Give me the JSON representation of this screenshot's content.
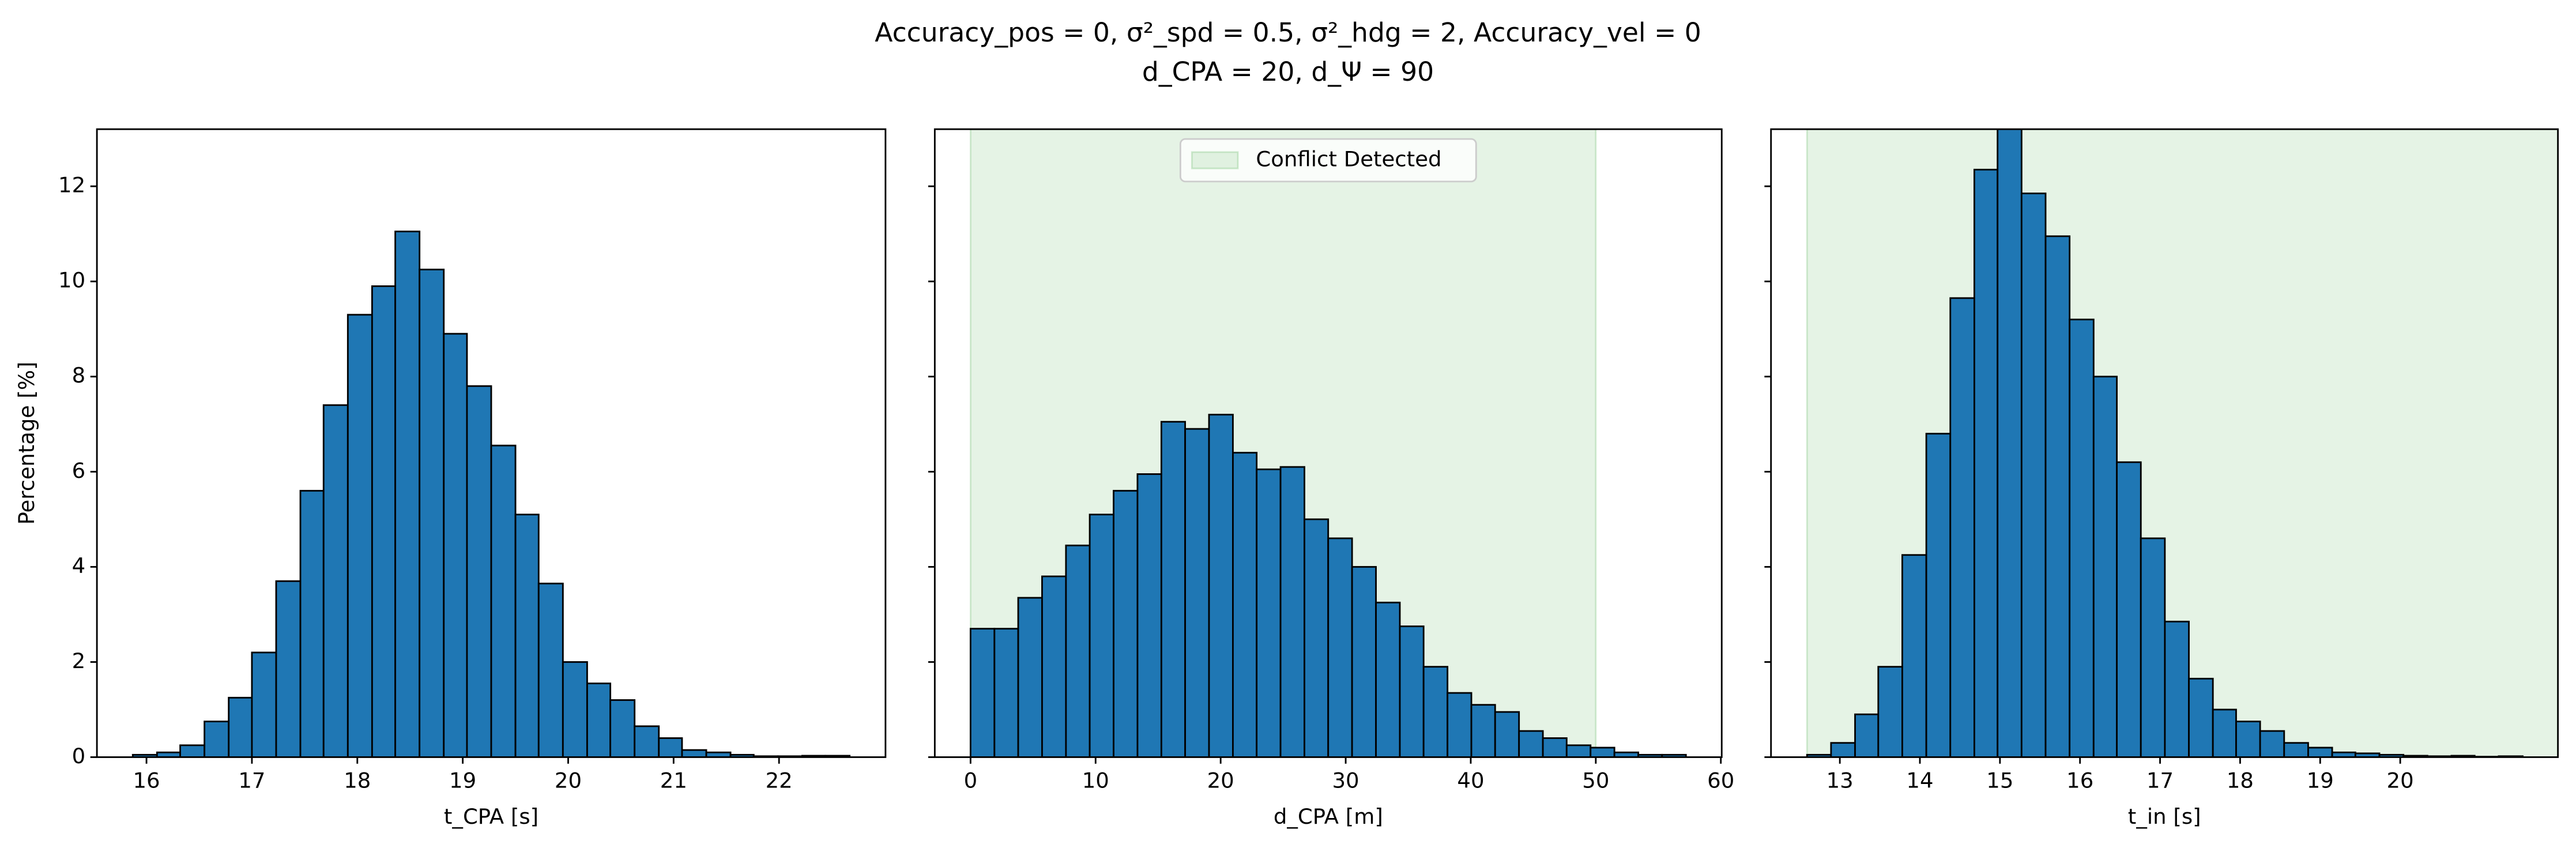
{
  "title_lines": [
    "Accuracy_pos = 0, σ²_spd = 0.5, σ²_hdg = 2, Accuracy_vel = 0",
    "d_CPA = 20, d_Ψ = 90"
  ],
  "chart_data": [
    {
      "type": "histogram",
      "xlabel": "t_CPA [s]",
      "ylabel": "Percentage [%]",
      "color": "#1f77b4",
      "bins": [
        15.87,
        16.1,
        16.32,
        16.55,
        16.78,
        17.0,
        17.23,
        17.46,
        17.68,
        17.91,
        18.14,
        18.36,
        18.59,
        18.82,
        19.04,
        19.27,
        19.5,
        19.72,
        19.95,
        20.18,
        20.4,
        20.63,
        20.86,
        21.08,
        21.31,
        21.54,
        21.76,
        21.99,
        22.22,
        22.44,
        22.67
      ],
      "values": [
        0.05,
        0.1,
        0.25,
        0.75,
        1.25,
        2.2,
        3.7,
        5.6,
        7.4,
        9.3,
        9.9,
        11.05,
        10.25,
        8.9,
        7.8,
        6.55,
        5.1,
        3.65,
        2.0,
        1.55,
        1.2,
        0.65,
        0.4,
        0.15,
        0.1,
        0.05,
        0.02,
        0.02,
        0.03,
        0.03
      ],
      "xlim": [
        15.53,
        23.01
      ],
      "xticks": [
        16,
        17,
        18,
        19,
        20,
        21,
        22
      ],
      "ylim": [
        0,
        13.2
      ],
      "yticks": [
        0,
        2,
        4,
        6,
        8,
        10,
        12
      ]
    },
    {
      "type": "histogram",
      "xlabel": "d_CPA [m]",
      "color": "#1f77b4",
      "bins": [
        0,
        1.91,
        3.81,
        5.72,
        7.63,
        9.53,
        11.44,
        13.35,
        15.26,
        17.16,
        19.07,
        20.98,
        22.88,
        24.79,
        26.7,
        28.6,
        30.51,
        32.42,
        34.33,
        36.23,
        38.14,
        40.05,
        41.95,
        43.86,
        45.77,
        47.67,
        49.58,
        51.49,
        53.4,
        55.3,
        57.21
      ],
      "values": [
        2.7,
        2.7,
        3.35,
        3.8,
        4.45,
        5.1,
        5.6,
        5.95,
        7.05,
        6.9,
        7.2,
        6.4,
        6.05,
        6.1,
        5.0,
        4.6,
        4.0,
        3.25,
        2.75,
        1.9,
        1.35,
        1.1,
        0.95,
        0.55,
        0.4,
        0.25,
        0.2,
        0.1,
        0.05,
        0.05
      ],
      "xlim": [
        -2.86,
        60.07
      ],
      "xticks": [
        0,
        10,
        20,
        30,
        40,
        50,
        60
      ],
      "ylim": [
        0,
        13.2
      ],
      "span": {
        "range": [
          0,
          50
        ],
        "color": "#2ca02c",
        "label": "Conflict Detected"
      },
      "legend": "upper center"
    },
    {
      "type": "histogram",
      "xlabel": "t_in [s]",
      "color": "#1f77b4",
      "bins": [
        12.59,
        12.89,
        13.19,
        13.48,
        13.78,
        14.08,
        14.38,
        14.68,
        14.97,
        15.27,
        15.57,
        15.87,
        16.17,
        16.46,
        16.76,
        17.06,
        17.36,
        17.66,
        17.95,
        18.25,
        18.55,
        18.85,
        19.15,
        19.44,
        19.74,
        20.04,
        20.34,
        20.64,
        20.93,
        21.23,
        21.53
      ],
      "values": [
        0.05,
        0.3,
        0.9,
        1.9,
        4.25,
        6.8,
        9.65,
        12.35,
        13.5,
        11.85,
        10.95,
        9.2,
        8.0,
        6.2,
        4.6,
        2.85,
        1.65,
        1.0,
        0.75,
        0.55,
        0.3,
        0.2,
        0.1,
        0.08,
        0.05,
        0.03,
        0.02,
        0.03,
        0.01,
        0.02
      ],
      "xlim": [
        12.14,
        21.97
      ],
      "xticks": [
        13,
        14,
        15,
        16,
        17,
        18,
        19,
        20
      ],
      "ylim": [
        0,
        13.2
      ],
      "span": {
        "range": [
          12.59,
          21.97
        ],
        "color": "#2ca02c"
      }
    }
  ]
}
